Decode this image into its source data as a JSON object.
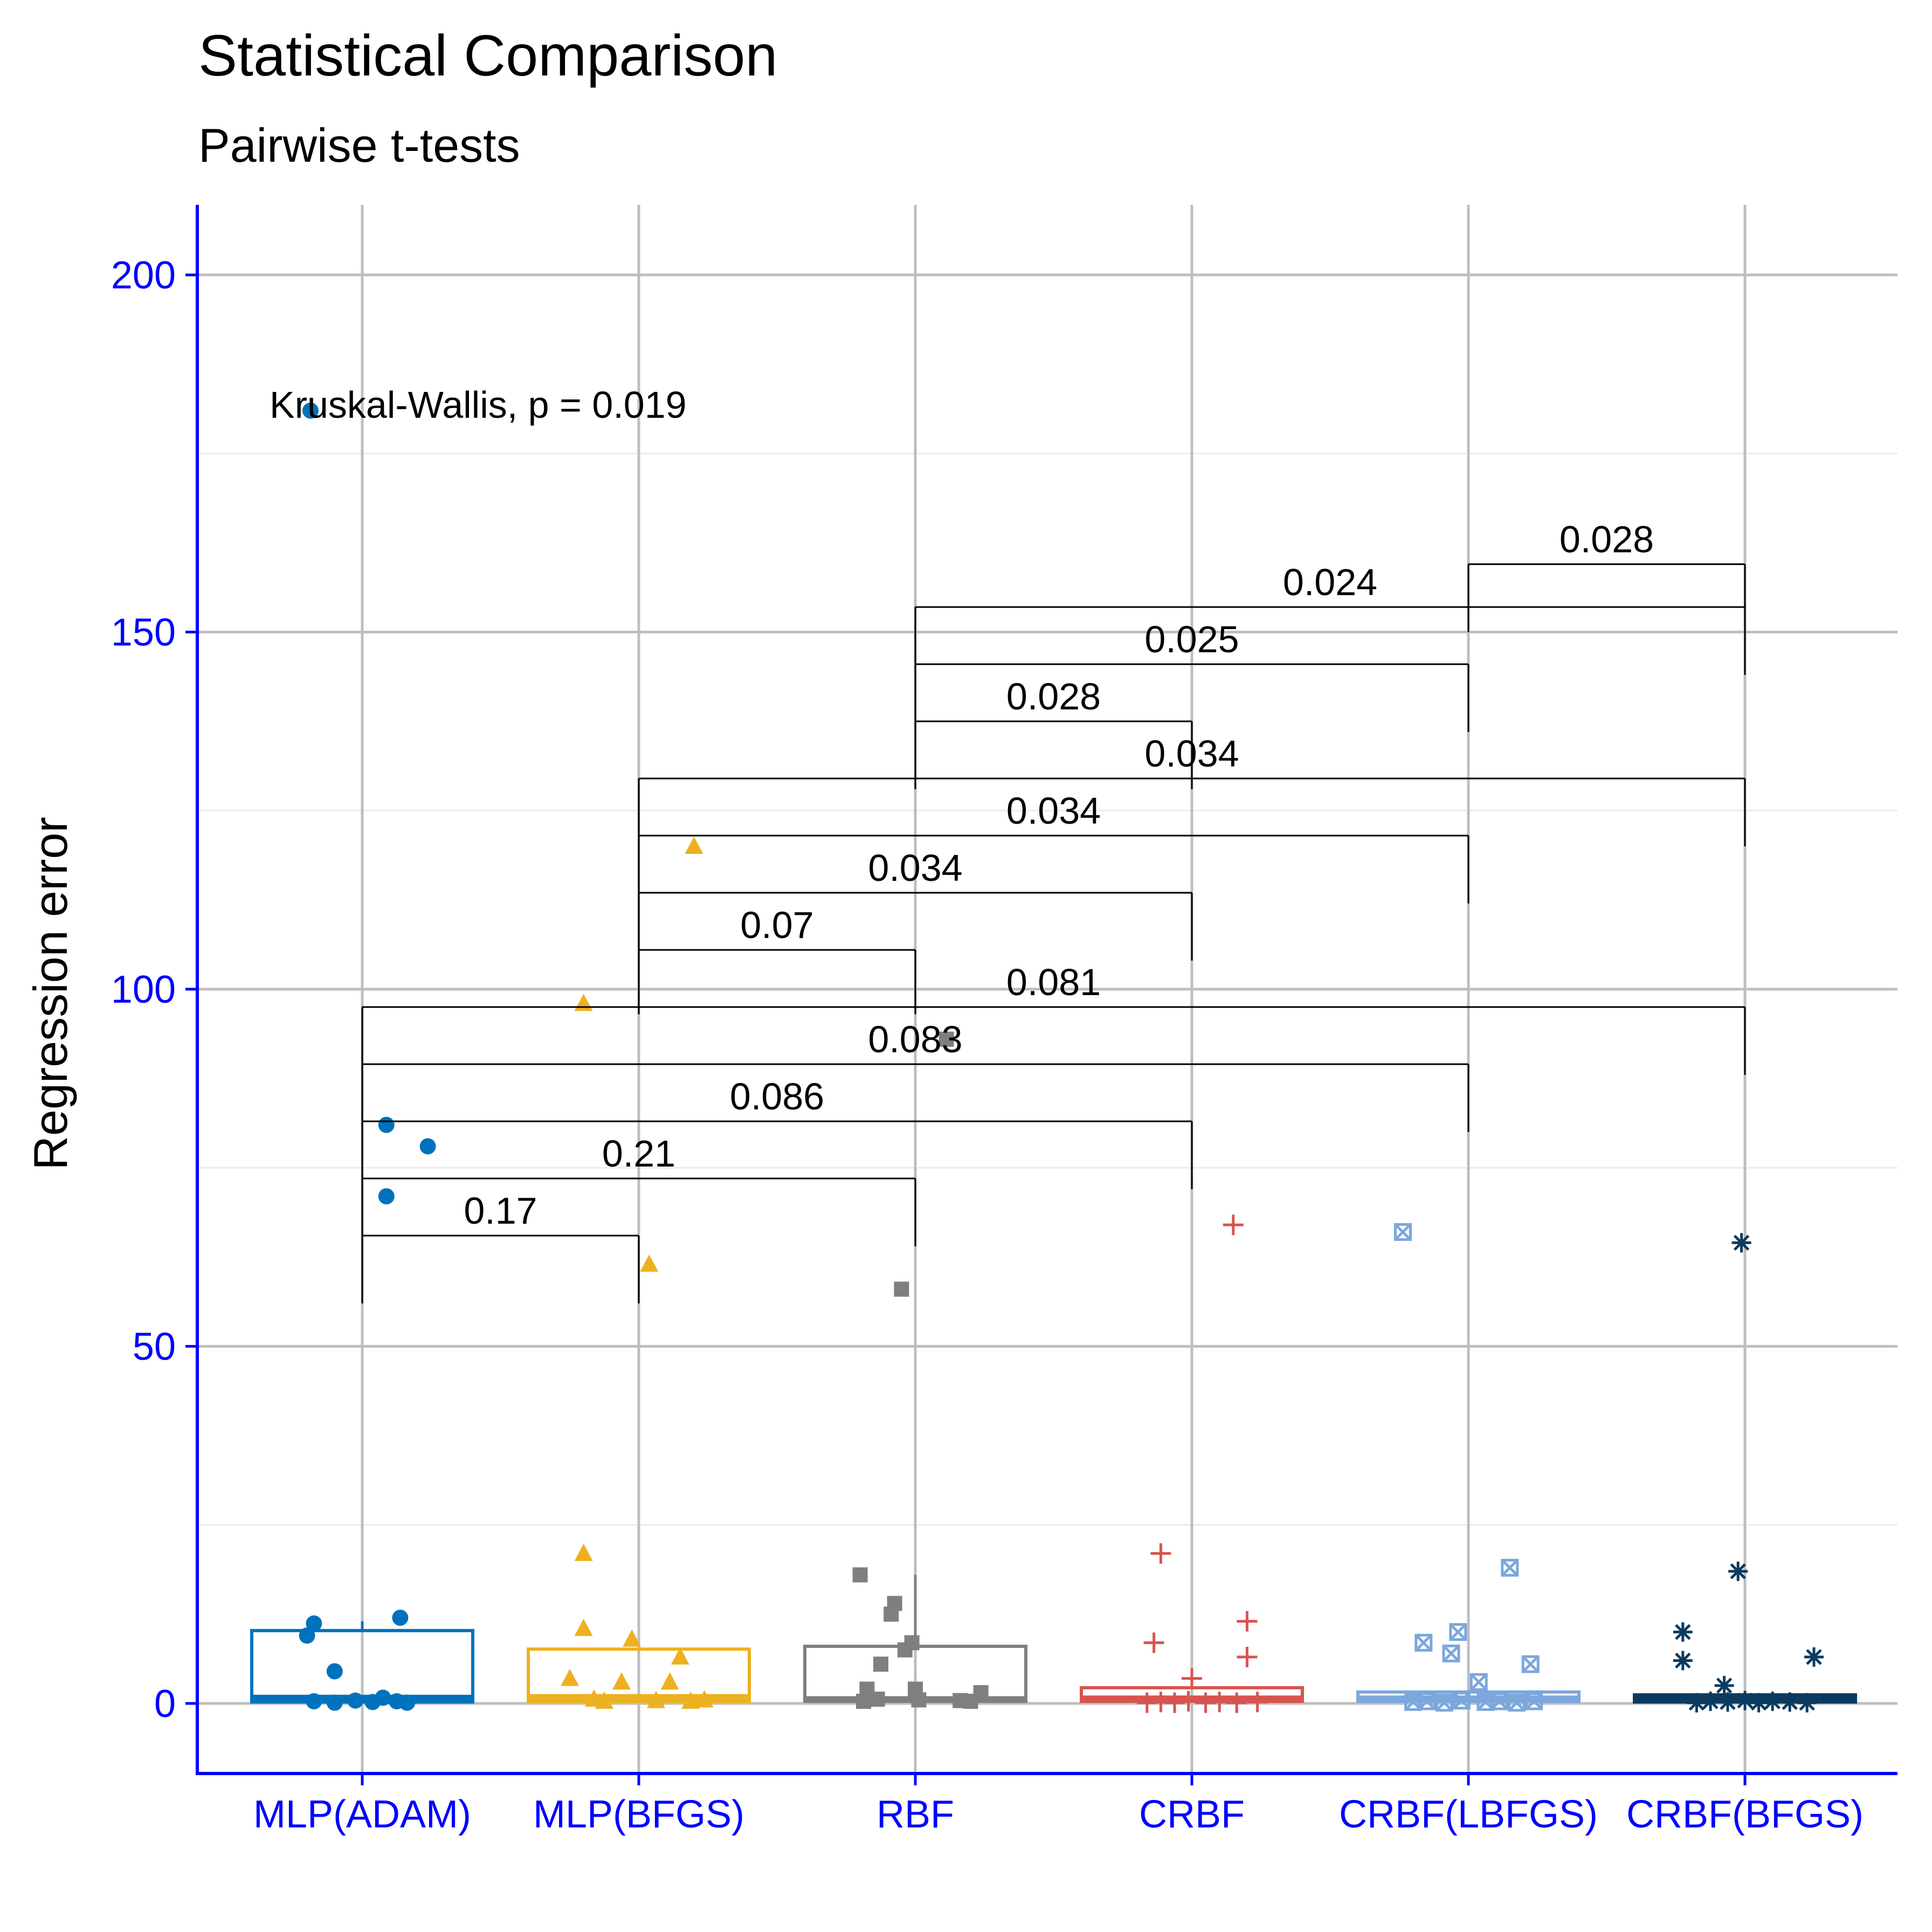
{
  "chart_data": {
    "type": "box",
    "title": "Statistical Comparison",
    "subtitle": "Pairwise t-tests",
    "xlabel": "",
    "ylabel": "Regression error",
    "ylim": [
      -10,
      210
    ],
    "y_ticks": [
      0,
      50,
      100,
      150,
      200
    ],
    "grid": true,
    "axis_color": "#0000FF",
    "annotation": "Kruskal-Wallis, p = 0.019",
    "categories": [
      "MLP(ADAM)",
      "MLP(BFGS)",
      "RBF",
      "CRBF",
      "CRBF(LBFGS)",
      "CRBF(BFGS)"
    ],
    "series": [
      {
        "color": "#0072BD",
        "shape": "circle",
        "box": {
          "min": 0,
          "q1": 0.2,
          "median": 0.8,
          "q3": 10.2,
          "max": 11.5
        },
        "points": [
          [
            -0.15,
            181
          ],
          [
            0.07,
            81
          ],
          [
            0.19,
            78
          ],
          [
            0.07,
            71
          ],
          [
            0.11,
            12
          ],
          [
            -0.14,
            11.2
          ],
          [
            -0.16,
            9.5
          ],
          [
            -0.08,
            4.5
          ],
          [
            -0.14,
            0.3
          ],
          [
            -0.08,
            0.1
          ],
          [
            -0.02,
            0.4
          ],
          [
            0.03,
            0.2
          ],
          [
            0.06,
            0.8
          ],
          [
            0.1,
            0.3
          ],
          [
            0.13,
            0.1
          ]
        ]
      },
      {
        "color": "#EDB120",
        "shape": "triangle",
        "box": {
          "min": 0,
          "q1": 0.3,
          "median": 0.9,
          "q3": 7.6,
          "max": 7.6
        },
        "points": [
          [
            0.16,
            120
          ],
          [
            -0.16,
            98
          ],
          [
            0.03,
            61.5
          ],
          [
            -0.16,
            21
          ],
          [
            -0.16,
            10.5
          ],
          [
            -0.02,
            9
          ],
          [
            0.12,
            6.5
          ],
          [
            -0.2,
            3.5
          ],
          [
            -0.05,
            3
          ],
          [
            0.09,
            3
          ],
          [
            -0.13,
            0.6
          ],
          [
            -0.1,
            0.3
          ],
          [
            0.05,
            0.4
          ],
          [
            0.15,
            0.3
          ],
          [
            0.19,
            0.5
          ]
        ]
      },
      {
        "color": "#7F7F7F",
        "shape": "square",
        "box": {
          "min": 0,
          "q1": 0.3,
          "median": 0.6,
          "q3": 8,
          "max": 18
        },
        "points": [
          [
            0.09,
            93
          ],
          [
            -0.04,
            58
          ],
          [
            -0.16,
            18
          ],
          [
            -0.06,
            14
          ],
          [
            -0.07,
            12.5
          ],
          [
            -0.01,
            8.5
          ],
          [
            -0.03,
            7.5
          ],
          [
            -0.1,
            5.5
          ],
          [
            -0.15,
            0.3
          ],
          [
            -0.11,
            0.6
          ],
          [
            -0.14,
            2
          ],
          [
            0,
            2
          ],
          [
            0.01,
            0.5
          ],
          [
            0.13,
            0.4
          ],
          [
            0.16,
            0.3
          ],
          [
            0.19,
            1.5
          ]
        ]
      },
      {
        "color": "#D9534F",
        "shape": "plus",
        "box": {
          "min": 0,
          "q1": 0.3,
          "median": 0.7,
          "q3": 2.2,
          "max": 2.2
        },
        "points": [
          [
            0.12,
            67
          ],
          [
            -0.09,
            21
          ],
          [
            0.16,
            11.5
          ],
          [
            -0.11,
            8.5
          ],
          [
            0.16,
            6.5
          ],
          [
            0,
            3.5
          ],
          [
            -0.13,
            0.1
          ],
          [
            -0.09,
            0.2
          ],
          [
            -0.05,
            0.1
          ],
          [
            -0.01,
            0.3
          ],
          [
            0.04,
            0.1
          ],
          [
            0.08,
            0.2
          ],
          [
            0.13,
            0.1
          ],
          [
            0.19,
            0.2
          ]
        ]
      },
      {
        "color": "#7BA7DC",
        "shape": "boxx",
        "box": {
          "min": 0,
          "q1": 0.3,
          "median": 0.7,
          "q3": 1.6,
          "max": 1.6
        },
        "points": [
          [
            -0.19,
            66
          ],
          [
            0.12,
            19
          ],
          [
            -0.03,
            10
          ],
          [
            -0.13,
            8.5
          ],
          [
            -0.05,
            7
          ],
          [
            0.03,
            3
          ],
          [
            0.18,
            5.5
          ],
          [
            -0.16,
            0.2
          ],
          [
            -0.12,
            0.3
          ],
          [
            -0.07,
            0.1
          ],
          [
            -0.02,
            0.4
          ],
          [
            0.05,
            0.2
          ],
          [
            0.09,
            0.3
          ],
          [
            0.14,
            0.1
          ],
          [
            0.19,
            0.3
          ]
        ]
      },
      {
        "color": "#0B3B60",
        "shape": "star",
        "box": {
          "min": 0,
          "q1": 0.2,
          "median": 0.6,
          "q3": 1.2,
          "max": 1.2
        },
        "points": [
          [
            -0.01,
            64.5
          ],
          [
            -0.02,
            18.5
          ],
          [
            -0.18,
            10
          ],
          [
            -0.18,
            6
          ],
          [
            0.2,
            6.5
          ],
          [
            -0.06,
            2.5
          ],
          [
            -0.14,
            0.1
          ],
          [
            -0.1,
            0.3
          ],
          [
            -0.05,
            0.2
          ],
          [
            0,
            0.4
          ],
          [
            0.04,
            0.1
          ],
          [
            0.08,
            0.3
          ],
          [
            0.13,
            0.2
          ],
          [
            0.18,
            0.1
          ]
        ]
      }
    ],
    "comparisons": [
      {
        "from": 0,
        "to": 1,
        "y": 65.5,
        "left_end": 56,
        "right_end": 56,
        "label": "0.17"
      },
      {
        "from": 0,
        "to": 2,
        "y": 73.5,
        "left_end": 56,
        "right_end": 64,
        "label": "0.21"
      },
      {
        "from": 0,
        "to": 3,
        "y": 81.5,
        "left_end": 56,
        "right_end": 72,
        "label": "0.086"
      },
      {
        "from": 0,
        "to": 4,
        "y": 89.5,
        "left_end": 56,
        "right_end": 80,
        "label": "0.083"
      },
      {
        "from": 0,
        "to": 5,
        "y": 97.5,
        "left_end": 56,
        "right_end": 88,
        "label": "0.081"
      },
      {
        "from": 1,
        "to": 2,
        "y": 105.5,
        "left_end": 96.5,
        "right_end": 96.5,
        "label": "0.07"
      },
      {
        "from": 1,
        "to": 3,
        "y": 113.5,
        "left_end": 96.5,
        "right_end": 104,
        "label": "0.034"
      },
      {
        "from": 1,
        "to": 4,
        "y": 121.5,
        "left_end": 96.5,
        "right_end": 112,
        "label": "0.034"
      },
      {
        "from": 1,
        "to": 5,
        "y": 129.5,
        "left_end": 96.5,
        "right_end": 120,
        "label": "0.034"
      },
      {
        "from": 2,
        "to": 3,
        "y": 137.5,
        "left_end": 128,
        "right_end": 128,
        "label": "0.028"
      },
      {
        "from": 2,
        "to": 4,
        "y": 145.5,
        "left_end": 128,
        "right_end": 136,
        "label": "0.025"
      },
      {
        "from": 2,
        "to": 5,
        "y": 153.5,
        "left_end": 128,
        "right_end": 144,
        "label": "0.024"
      },
      {
        "from": 4,
        "to": 5,
        "y": 159.5,
        "left_end": 150,
        "right_end": 150,
        "label": "0.028"
      }
    ]
  }
}
